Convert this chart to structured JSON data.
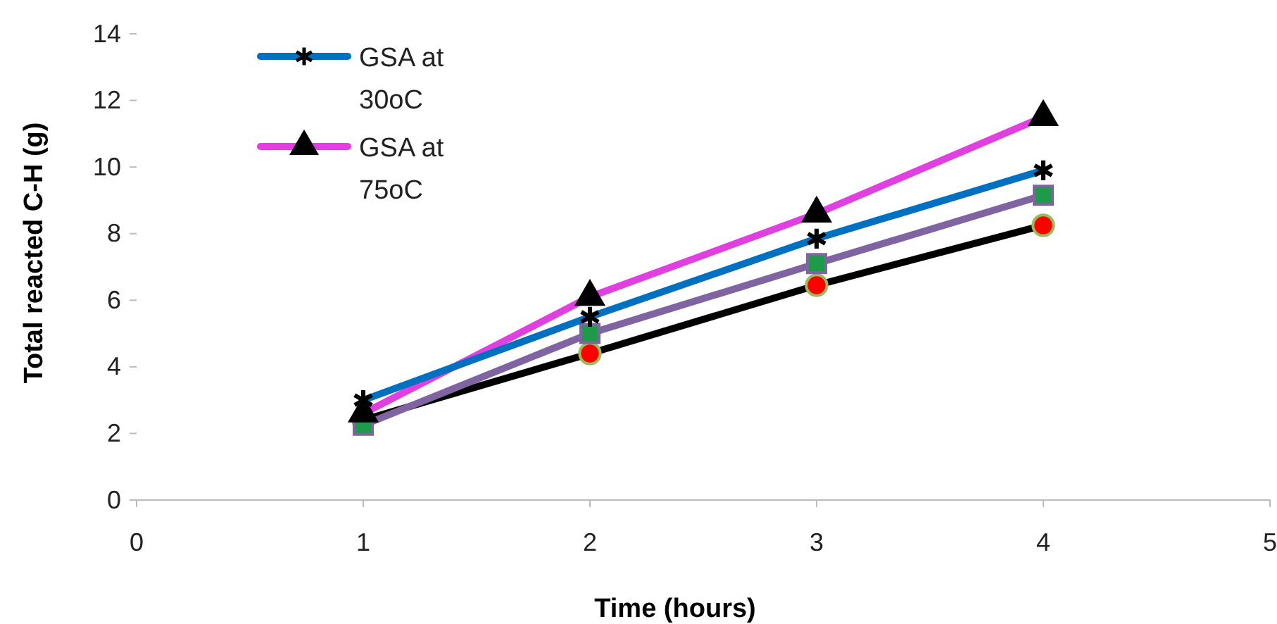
{
  "chart_data": {
    "type": "line",
    "xlabel": "Time (hours)",
    "ylabel": "Total reacted C-H (g)",
    "x": [
      1,
      2,
      3,
      4
    ],
    "xlim": [
      0,
      5
    ],
    "xticks": [
      0,
      1,
      2,
      3,
      4,
      5
    ],
    "ylim": [
      0,
      14
    ],
    "yticks": [
      0,
      2,
      4,
      6,
      8,
      10,
      12,
      14
    ],
    "grid": false,
    "legend": "top left",
    "line_style": "solid",
    "series": [
      {
        "name": "GSA at 30oC",
        "color": "#0070c0",
        "marker": "cross",
        "values": [
          3.0,
          5.5,
          7.85,
          9.9
        ]
      },
      {
        "name": "GSA at 75oC",
        "color": "#e040e0",
        "marker": "triangle",
        "values": [
          2.6,
          6.1,
          8.6,
          11.5
        ]
      },
      {
        "color": "#8064a2",
        "marker": "square",
        "values": [
          2.25,
          5.0,
          7.1,
          9.15
        ]
      },
      {
        "color": "#000000",
        "marker": "circle",
        "values": [
          2.4,
          4.4,
          6.45,
          8.25
        ]
      }
    ]
  }
}
